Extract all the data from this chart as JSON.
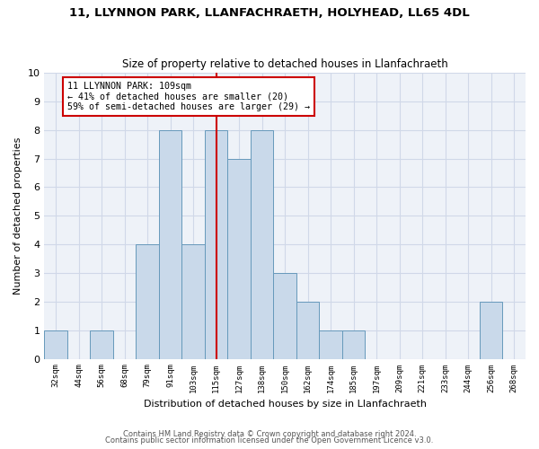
{
  "title1": "11, LLYNNON PARK, LLANFACHRAETH, HOLYHEAD, LL65 4DL",
  "title2": "Size of property relative to detached houses in Llanfachraeth",
  "xlabel": "Distribution of detached houses by size in Llanfachraeth",
  "ylabel": "Number of detached properties",
  "categories": [
    "32sqm",
    "44sqm",
    "56sqm",
    "68sqm",
    "79sqm",
    "91sqm",
    "103sqm",
    "115sqm",
    "127sqm",
    "138sqm",
    "150sqm",
    "162sqm",
    "174sqm",
    "185sqm",
    "197sqm",
    "209sqm",
    "221sqm",
    "233sqm",
    "244sqm",
    "256sqm",
    "268sqm"
  ],
  "values": [
    1,
    0,
    1,
    0,
    4,
    8,
    4,
    8,
    7,
    8,
    3,
    2,
    1,
    1,
    0,
    0,
    0,
    0,
    0,
    2,
    0
  ],
  "bar_color": "#c9d9ea",
  "bar_edge_color": "#6699bb",
  "marker_index": 7,
  "marker_label": "11 LLYNNON PARK: 109sqm",
  "annotation_line1": "← 41% of detached houses are smaller (20)",
  "annotation_line2": "59% of semi-detached houses are larger (29) →",
  "vline_color": "#cc0000",
  "annotation_box_color": "#cc0000",
  "grid_color": "#d0d8e8",
  "background_color": "#eef2f8",
  "ylim": [
    0,
    10
  ],
  "yticks": [
    0,
    1,
    2,
    3,
    4,
    5,
    6,
    7,
    8,
    9,
    10
  ],
  "footnote1": "Contains HM Land Registry data © Crown copyright and database right 2024.",
  "footnote2": "Contains public sector information licensed under the Open Government Licence v3.0."
}
